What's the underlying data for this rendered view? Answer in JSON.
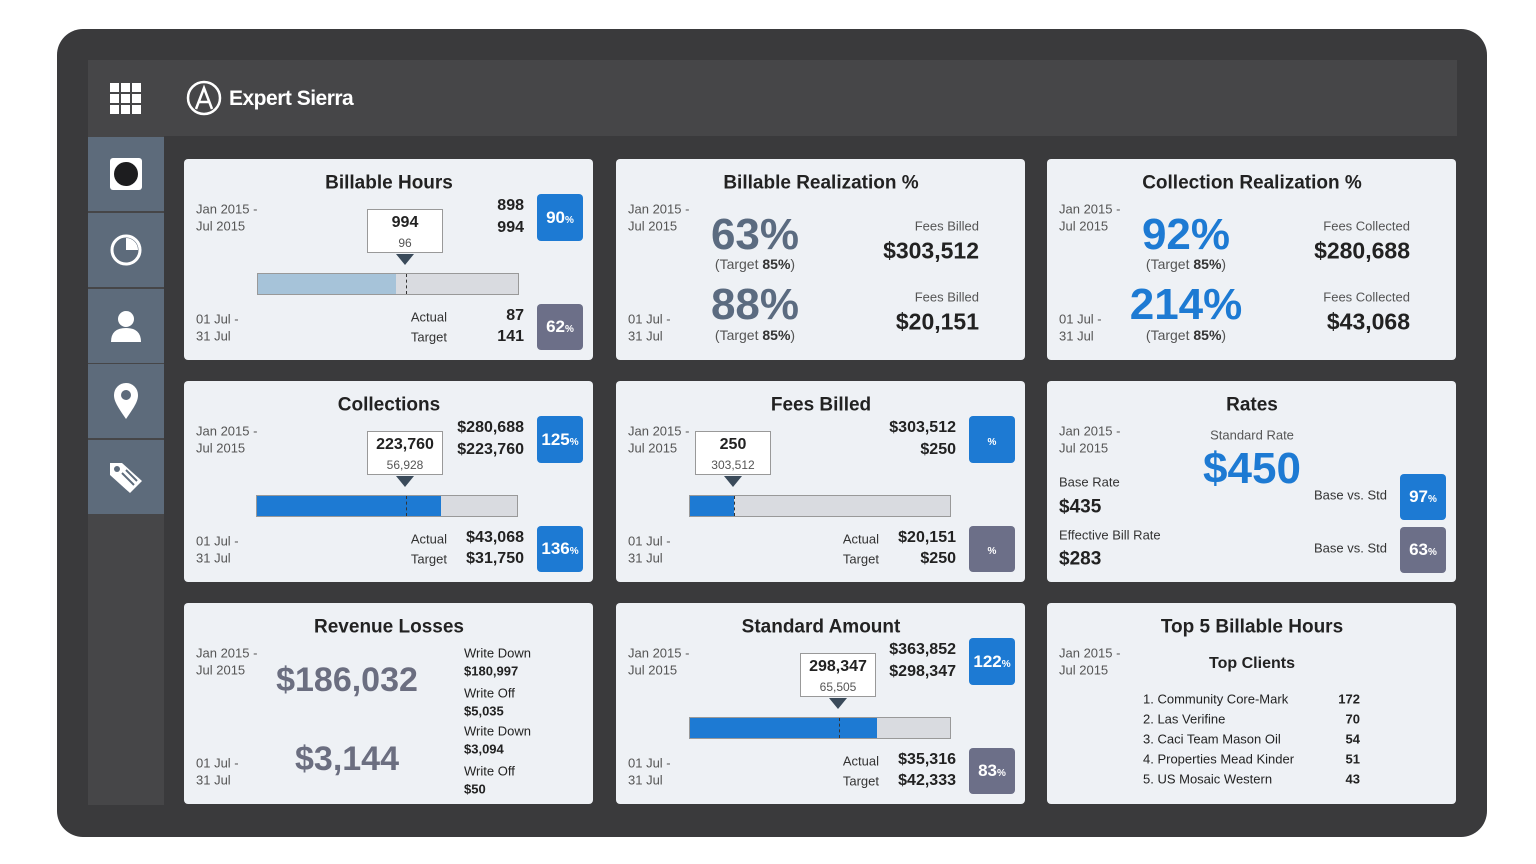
{
  "header": {
    "brand": "Expert Sierra"
  },
  "cards": [
    {
      "kind": "progress",
      "title": "Billable Hours",
      "period": [
        "Jan 2015 -",
        "Jul 2015"
      ],
      "period_month": [
        "01 Jul -",
        "31 Jul"
      ],
      "callout": [
        994,
        96
      ],
      "actual": 898,
      "target": 994,
      "badge": {
        "value": 90,
        "unit": "%",
        "color": "#1d7ad3"
      },
      "labels": [
        "Actual",
        "Target"
      ],
      "month_actual": 87,
      "month_target": 141,
      "month_badge": {
        "value": 62,
        "unit": "%",
        "color": "#6c6f88"
      },
      "bar_color": "#a6c3d9"
    },
    {
      "kind": "realization",
      "title": "Billable Realization %",
      "color": "#5b6b80",
      "period": [
        "Jan 2015 -",
        "Jul 2015"
      ],
      "period_month": [
        "01 Jul -",
        "31 Jul"
      ],
      "rows": [
        {
          "pct": "63%",
          "target": [
            "(Target ",
            "85%",
            ")"
          ],
          "label": "Fees Billed",
          "amount": "$303,512"
        },
        {
          "pct": "88%",
          "target": [
            "(Target ",
            "85%",
            ")"
          ],
          "label": "Fees Billed",
          "amount": "$20,151"
        }
      ]
    },
    {
      "kind": "realization",
      "title": "Collection Realization %",
      "color": "#1d7ad3",
      "period": [
        "Jan 2015 -",
        "Jul 2015"
      ],
      "period_month": [
        "01 Jul -",
        "31 Jul"
      ],
      "rows": [
        {
          "pct": "92%",
          "target": [
            "(Target ",
            "85%",
            ")"
          ],
          "label": "Fees Collected",
          "amount": "$280,688"
        },
        {
          "pct": "214%",
          "target": [
            "(Target ",
            "85%",
            ")"
          ],
          "label": "Fees Collected",
          "amount": "$43,068"
        }
      ]
    },
    {
      "kind": "progress",
      "title": "Collections",
      "period": [
        "Jan 2015 -",
        "Jul 2015"
      ],
      "period_month": [
        "01 Jul -",
        "31 Jul"
      ],
      "callout": [
        "223,760",
        "56,928"
      ],
      "actual": "$280,688",
      "target": "$223,760",
      "badge": {
        "value": 125,
        "unit": "%",
        "color": "#1d7ad3"
      },
      "labels": [
        "Actual",
        "Target"
      ],
      "month_actual": "$43,068",
      "month_target": "$31,750",
      "month_badge": {
        "value": 136,
        "unit": "%",
        "color": "#1d7ad3"
      },
      "bar_color": "#1d7ad3"
    },
    {
      "kind": "progress",
      "title": "Fees Billed",
      "period": [
        "Jan 2015 -",
        "Jul 2015"
      ],
      "period_month": [
        "01 Jul -",
        "31 Jul"
      ],
      "callout": [
        250,
        "303,512"
      ],
      "actual": "$303,512",
      "target": "$250",
      "badge": {
        "unit": "%",
        "color": "#1d7ad3"
      },
      "labels": [
        "Actual",
        "Target"
      ],
      "month_actual": "$20,151",
      "month_target": "$250",
      "month_badge": {
        "unit": "%",
        "color": "#6c6f88"
      },
      "bar_color": "#1d7ad3"
    },
    {
      "kind": "rates",
      "title": "Rates",
      "period": [
        "Jan 2015 -",
        "Jul 2015"
      ],
      "standard_label": "Standard Rate",
      "standard": "$450",
      "base_label": "Base Rate",
      "base": "$435",
      "effective_label": "Effective Bill Rate",
      "effective": "$283",
      "compare": [
        {
          "label": "Base vs. Std",
          "badge": {
            "value": 97,
            "unit": "%",
            "color": "#1d7ad3"
          }
        },
        {
          "label": "Base vs. Std",
          "badge": {
            "value": 63,
            "unit": "%",
            "color": "#6c6f88"
          }
        }
      ]
    },
    {
      "kind": "losses",
      "title": "Revenue Losses",
      "period": [
        "Jan 2015 -",
        "Jul 2015"
      ],
      "period_month": [
        "01 Jul -",
        "31 Jul"
      ],
      "totals": [
        "$186,032",
        "$3,144"
      ],
      "items": [
        {
          "label": "Write Down",
          "amount": "$180,997"
        },
        {
          "label": "Write Off",
          "amount": "$5,035"
        },
        {
          "label": "Write Down",
          "amount": "$3,094"
        },
        {
          "label": "Write Off",
          "amount": "$50"
        }
      ]
    },
    {
      "kind": "progress",
      "title": "Standard Amount",
      "period": [
        "Jan 2015 -",
        "Jul 2015"
      ],
      "period_month": [
        "01 Jul -",
        "31 Jul"
      ],
      "callout": [
        "298,347",
        "65,505"
      ],
      "actual": "$363,852",
      "target": "$298,347",
      "badge": {
        "value": 122,
        "unit": "%",
        "color": "#1d7ad3"
      },
      "labels": [
        "Actual",
        "Target"
      ],
      "month_actual": "$35,316",
      "month_target": "$42,333",
      "month_badge": {
        "value": 83,
        "unit": "%",
        "color": "#6c6f88"
      },
      "bar_color": "#1d7ad3"
    },
    {
      "kind": "top",
      "title": "Top 5 Billable Hours",
      "period": [
        "Jan 2015 -",
        "Jul 2015"
      ],
      "subtitle": "Top Clients",
      "rows": [
        [
          "1. Community Core-Mark",
          172
        ],
        [
          "2. Las Verifine",
          70
        ],
        [
          "3. Caci Team Mason Oil",
          54
        ],
        [
          "4. Properties Mead Kinder",
          51
        ],
        [
          "5. US Mosaic Western",
          43
        ]
      ]
    }
  ]
}
